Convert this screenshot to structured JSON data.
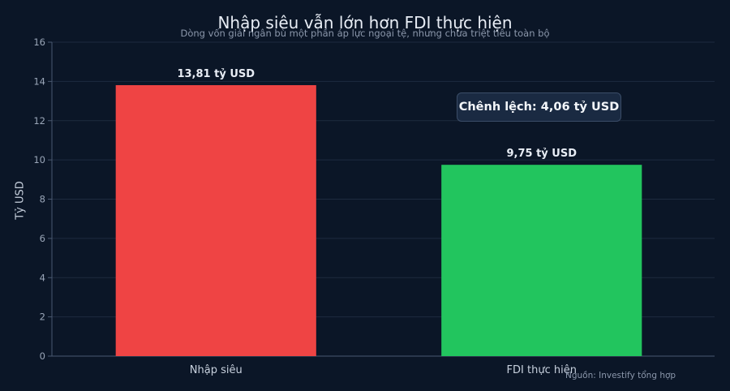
{
  "chart_data": {
    "type": "bar",
    "title": "Nhập siêu vẫn lớn hơn FDI thực hiện",
    "subtitle": "Dòng vốn giải ngân bù một phần áp lực ngoại tệ, nhưng chưa triệt tiêu toàn bộ",
    "xlabel": "",
    "ylabel": "Tỷ USD",
    "categories": [
      "Nhập siêu",
      "FDI thực hiện"
    ],
    "values": [
      13.81,
      9.75
    ],
    "data_labels": [
      "13,81 tỷ USD",
      "9,75 tỷ USD"
    ],
    "colors": [
      "#ef4444",
      "#22c55e"
    ],
    "ylim": [
      0,
      16
    ],
    "yticks": [
      0,
      2,
      4,
      6,
      8,
      10,
      12,
      14,
      16
    ],
    "grid": true,
    "annotation": "Chênh lệch: 4,06 tỷ USD",
    "source": "Nguồn: Investify tổng hợp"
  }
}
